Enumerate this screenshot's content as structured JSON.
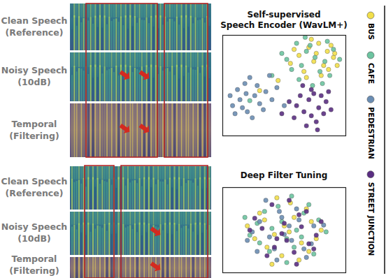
{
  "spectrogram_groups": [
    {
      "rows": [
        {
          "label": "Clean Speech",
          "sublabel": "(Reference)"
        },
        {
          "label": "Noisy Speech",
          "sublabel": "(10dB)"
        },
        {
          "label": "Temporal",
          "sublabel": "(Filtering)"
        }
      ]
    },
    {
      "rows": [
        {
          "label": "Clean Speech",
          "sublabel": "(Reference)"
        },
        {
          "label": "Noisy Speech",
          "sublabel": "(10dB)"
        },
        {
          "label": "Temporal",
          "sublabel": "(Filtering)"
        }
      ]
    }
  ],
  "chart_data": [
    {
      "type": "scatter",
      "title": "Self-supervised\nSpeech Encoder (WavLM+)",
      "xlim": [
        0,
        100
      ],
      "ylim": [
        0,
        100
      ],
      "tick_labels": false,
      "legend": "right",
      "series": [
        {
          "name": "BUS",
          "color": "#f2df4a",
          "x": [
            70,
            78,
            85,
            90,
            62,
            74,
            82,
            88,
            66,
            93,
            58,
            80,
            72,
            86,
            45,
            55,
            30,
            68,
            91,
            76
          ],
          "y": [
            88,
            92,
            84,
            78,
            80,
            74,
            70,
            90,
            64,
            70,
            86,
            60,
            96,
            66,
            55,
            72,
            45,
            58,
            82,
            82
          ]
        },
        {
          "name": "CAFE",
          "color": "#6cc4a0",
          "x": [
            60,
            68,
            75,
            83,
            90,
            52,
            64,
            79,
            87,
            71,
            95,
            56,
            48,
            62,
            73,
            85,
            40,
            22,
            67,
            81
          ],
          "y": [
            92,
            84,
            78,
            74,
            86,
            76,
            70,
            64,
            60,
            90,
            76,
            66,
            82,
            56,
            50,
            94,
            60,
            35,
            98,
            52
          ]
        },
        {
          "name": "PEDESTRIAN",
          "color": "#6a8db3",
          "x": [
            8,
            14,
            20,
            26,
            12,
            18,
            30,
            35,
            22,
            10,
            28,
            40,
            16,
            24,
            33,
            6,
            44,
            50,
            38,
            19
          ],
          "y": [
            30,
            36,
            24,
            40,
            46,
            52,
            32,
            44,
            58,
            22,
            50,
            36,
            28,
            18,
            26,
            40,
            48,
            30,
            60,
            42
          ]
        },
        {
          "name": "STREET JUNCTION",
          "color": "#5a2d82",
          "x": [
            60,
            66,
            72,
            78,
            84,
            63,
            70,
            76,
            82,
            88,
            58,
            68,
            74,
            80,
            65,
            72,
            54,
            86,
            77,
            48
          ],
          "y": [
            30,
            24,
            20,
            28,
            34,
            40,
            36,
            14,
            22,
            26,
            18,
            10,
            42,
            40,
            50,
            46,
            34,
            44,
            6,
            22
          ]
        }
      ]
    },
    {
      "type": "scatter",
      "title": "Deep Filter Tuning",
      "xlim": [
        0,
        100
      ],
      "ylim": [
        0,
        100
      ],
      "tick_labels": false,
      "series": [
        {
          "name": "BUS",
          "color": "#f2df4a",
          "x": [
            30,
            55,
            72,
            42,
            64,
            20,
            48,
            80,
            36,
            58,
            26,
            68,
            50,
            44,
            76,
            62,
            34,
            54,
            70,
            40
          ],
          "y": [
            70,
            82,
            60,
            45,
            35,
            55,
            20,
            50,
            30,
            65,
            40,
            75,
            55,
            88,
            40,
            15,
            62,
            48,
            25,
            10
          ]
        },
        {
          "name": "CAFE",
          "color": "#6cc4a0",
          "x": [
            45,
            66,
            28,
            52,
            78,
            38,
            60,
            22,
            70,
            48,
            84,
            34,
            58,
            40,
            74,
            64,
            30,
            52,
            18,
            56
          ],
          "y": [
            78,
            70,
            58,
            40,
            62,
            25,
            50,
            44,
            80,
            60,
            48,
            72,
            30,
            52,
            22,
            42,
            35,
            12,
            65,
            90
          ]
        },
        {
          "name": "PEDESTRIAN",
          "color": "#6a8db3",
          "x": [
            35,
            60,
            48,
            74,
            24,
            56,
            42,
            68,
            30,
            82,
            50,
            38,
            62,
            46,
            72,
            20,
            54,
            66,
            28,
            44
          ],
          "y": [
            85,
            75,
            65,
            55,
            48,
            38,
            28,
            18,
            60,
            56,
            45,
            42,
            62,
            72,
            34,
            38,
            55,
            28,
            25,
            15
          ]
        },
        {
          "name": "STREET JUNCTION",
          "color": "#5a2d82",
          "x": [
            40,
            62,
            50,
            76,
            32,
            58,
            26,
            70,
            44,
            80,
            36,
            64,
            54,
            48,
            68,
            22,
            60,
            42,
            74,
            52
          ],
          "y": [
            80,
            68,
            58,
            44,
            52,
            24,
            64,
            34,
            40,
            60,
            20,
            54,
            85,
            46,
            72,
            50,
            10,
            30,
            28,
            38
          ]
        }
      ]
    }
  ]
}
